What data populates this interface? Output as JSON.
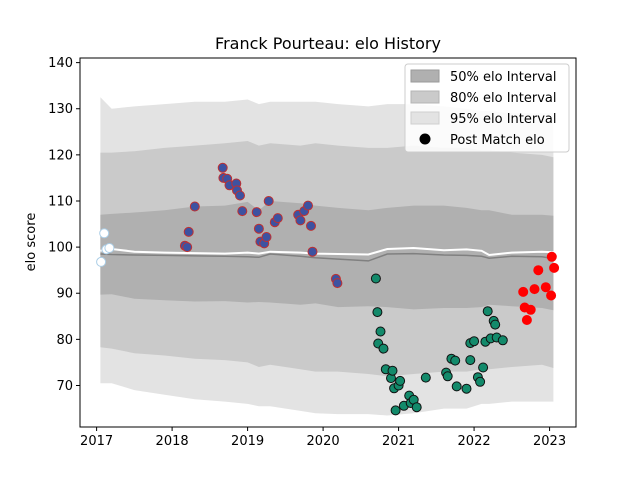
{
  "chart_data": {
    "type": "scatter",
    "title": "Franck Pourteau: elo History",
    "xlabel": "",
    "ylabel": "elo score",
    "xlim": [
      2016.78,
      2023.35
    ],
    "ylim": [
      61,
      141
    ],
    "x_ticks": [
      2017,
      2018,
      2019,
      2020,
      2021,
      2022,
      2023
    ],
    "y_ticks": [
      70,
      80,
      90,
      100,
      110,
      120,
      130,
      140
    ],
    "grid": false,
    "legend_position": "top-right",
    "legend": [
      {
        "label": "50% elo Interval",
        "kind": "band",
        "color": "#b0b0b0"
      },
      {
        "label": "80% elo Interval",
        "kind": "band",
        "color": "#cacaca"
      },
      {
        "label": "95% elo Interval",
        "kind": "band",
        "color": "#e3e3e3"
      },
      {
        "label": "Post Match elo",
        "kind": "marker",
        "color": "#000000"
      }
    ],
    "bands": {
      "x": [
        2017.05,
        2017.2,
        2017.5,
        2017.9,
        2018.3,
        2018.7,
        2019.0,
        2019.15,
        2019.3,
        2019.7,
        2019.9,
        2020.2,
        2020.6,
        2020.85,
        2021.2,
        2021.6,
        2021.9,
        2022.1,
        2022.2,
        2022.5,
        2022.9,
        2023.05
      ],
      "center": [
        98.5,
        98.4,
        98.3,
        98.2,
        98.1,
        98.0,
        97.9,
        97.8,
        98.5,
        98.0,
        97.7,
        97.4,
        97.0,
        98.5,
        98.6,
        98.3,
        98.2,
        98.0,
        97.6,
        98.0,
        97.9,
        97.5
      ],
      "p50": [
        [
          89.7,
          107.0
        ],
        [
          89.8,
          107.2
        ],
        [
          88.8,
          107.5
        ],
        [
          88.5,
          108.0
        ],
        [
          88.2,
          108.8
        ],
        [
          88.3,
          109.0
        ],
        [
          88.0,
          109.8
        ],
        [
          88.1,
          108.0
        ],
        [
          88.0,
          110.0
        ],
        [
          87.5,
          109.5
        ],
        [
          87.8,
          109.0
        ],
        [
          87.0,
          108.5
        ],
        [
          87.2,
          108.0
        ],
        [
          87.0,
          108.5
        ],
        [
          86.5,
          109.0
        ],
        [
          86.8,
          109.0
        ],
        [
          86.8,
          108.5
        ],
        [
          87.0,
          108.0
        ],
        [
          87.5,
          108.0
        ],
        [
          87.2,
          107.0
        ],
        [
          86.8,
          107.0
        ],
        [
          86.3,
          106.8
        ]
      ],
      "p80": [
        [
          78.3,
          120.5
        ],
        [
          78.0,
          120.5
        ],
        [
          77.0,
          120.8
        ],
        [
          76.5,
          121.5
        ],
        [
          75.8,
          122.0
        ],
        [
          75.5,
          122.5
        ],
        [
          75.0,
          123.0
        ],
        [
          74.0,
          122.0
        ],
        [
          74.5,
          122.5
        ],
        [
          73.5,
          122.0
        ],
        [
          73.0,
          122.5
        ],
        [
          73.0,
          122.0
        ],
        [
          72.5,
          121.5
        ],
        [
          72.0,
          121.5
        ],
        [
          72.5,
          122.0
        ],
        [
          73.0,
          121.5
        ],
        [
          73.0,
          121.5
        ],
        [
          73.5,
          121.0
        ],
        [
          73.5,
          121.0
        ],
        [
          74.0,
          120.5
        ],
        [
          74.5,
          120.0
        ],
        [
          73.8,
          119.5
        ]
      ],
      "p95": [
        [
          70.5,
          132.5
        ],
        [
          70.5,
          130.0
        ],
        [
          69.0,
          130.5
        ],
        [
          68.0,
          131.0
        ],
        [
          67.0,
          131.5
        ],
        [
          66.5,
          131.5
        ],
        [
          66.0,
          132.0
        ],
        [
          65.5,
          131.0
        ],
        [
          65.5,
          131.5
        ],
        [
          64.5,
          131.5
        ],
        [
          64.0,
          131.5
        ],
        [
          63.8,
          131.0
        ],
        [
          63.8,
          130.5
        ],
        [
          63.5,
          131.0
        ],
        [
          64.0,
          131.0
        ],
        [
          65.0,
          130.5
        ],
        [
          65.0,
          130.0
        ],
        [
          66.0,
          129.5
        ],
        [
          66.0,
          129.5
        ],
        [
          66.5,
          129.0
        ],
        [
          66.5,
          129.0
        ],
        [
          66.5,
          129.0
        ]
      ],
      "mean_line": [
        99.2,
        99.6,
        99.0,
        98.8,
        98.7,
        98.6,
        98.8,
        98.6,
        99.0,
        98.8,
        98.6,
        98.5,
        98.4,
        99.6,
        99.8,
        99.3,
        99.5,
        99.2,
        98.3,
        98.8,
        99.0,
        98.9
      ]
    },
    "series": [
      {
        "color": "#ffffff",
        "edge": "#aacde6",
        "points": [
          [
            2017.06,
            96.8
          ],
          [
            2017.1,
            103.0
          ],
          [
            2017.13,
            99.5
          ],
          [
            2017.17,
            99.8
          ]
        ]
      },
      {
        "color": "#3d52a1",
        "edge": "#c03030",
        "points": [
          [
            2018.17,
            100.3
          ],
          [
            2018.2,
            100.0
          ],
          [
            2018.22,
            103.3
          ],
          [
            2018.3,
            108.8
          ],
          [
            2018.67,
            117.2
          ],
          [
            2018.68,
            115.0
          ],
          [
            2018.73,
            114.8
          ],
          [
            2018.76,
            113.4
          ],
          [
            2018.85,
            113.8
          ],
          [
            2018.86,
            112.3
          ],
          [
            2018.9,
            111.2
          ],
          [
            2018.93,
            107.8
          ],
          [
            2019.12,
            107.6
          ],
          [
            2019.15,
            104.0
          ],
          [
            2019.17,
            101.2
          ],
          [
            2019.22,
            100.8
          ],
          [
            2019.25,
            102.2
          ],
          [
            2019.28,
            110.0
          ],
          [
            2019.36,
            105.4
          ],
          [
            2019.4,
            106.3
          ],
          [
            2019.67,
            107.0
          ],
          [
            2019.7,
            105.8
          ],
          [
            2019.75,
            107.8
          ],
          [
            2019.8,
            109.0
          ],
          [
            2019.84,
            104.6
          ],
          [
            2019.86,
            99.0
          ],
          [
            2020.17,
            93.1
          ],
          [
            2020.19,
            92.2
          ]
        ]
      },
      {
        "color": "#138a6b",
        "edge": "#111111",
        "points": [
          [
            2020.7,
            93.2
          ],
          [
            2020.72,
            85.9
          ],
          [
            2020.73,
            79.1
          ],
          [
            2020.76,
            81.7
          ],
          [
            2020.8,
            78.0
          ],
          [
            2020.83,
            73.5
          ],
          [
            2020.9,
            71.6
          ],
          [
            2020.92,
            73.2
          ],
          [
            2020.94,
            69.4
          ],
          [
            2020.96,
            64.6
          ],
          [
            2021.0,
            70.0
          ],
          [
            2021.02,
            71.0
          ],
          [
            2021.07,
            65.6
          ],
          [
            2021.14,
            67.8
          ],
          [
            2021.16,
            66.2
          ],
          [
            2021.2,
            66.9
          ],
          [
            2021.24,
            65.3
          ],
          [
            2021.36,
            71.7
          ],
          [
            2021.63,
            72.8
          ],
          [
            2021.65,
            72.0
          ],
          [
            2021.7,
            75.8
          ],
          [
            2021.75,
            75.4
          ],
          [
            2021.77,
            69.8
          ],
          [
            2021.9,
            69.3
          ],
          [
            2021.95,
            79.2
          ],
          [
            2021.95,
            75.5
          ],
          [
            2022.0,
            79.6
          ],
          [
            2022.05,
            71.8
          ],
          [
            2022.08,
            70.8
          ],
          [
            2022.12,
            73.9
          ],
          [
            2022.15,
            79.5
          ],
          [
            2022.18,
            86.1
          ],
          [
            2022.22,
            80.2
          ],
          [
            2022.26,
            84.0
          ],
          [
            2022.28,
            83.2
          ],
          [
            2022.3,
            80.4
          ],
          [
            2022.38,
            79.8
          ]
        ]
      },
      {
        "color": "#ff0000",
        "edge": "#ff0000",
        "points": [
          [
            2022.65,
            90.3
          ],
          [
            2022.67,
            86.9
          ],
          [
            2022.7,
            84.2
          ],
          [
            2022.75,
            86.4
          ],
          [
            2022.8,
            90.9
          ],
          [
            2022.85,
            95.0
          ],
          [
            2022.95,
            91.3
          ],
          [
            2023.02,
            89.5
          ],
          [
            2023.03,
            97.9
          ],
          [
            2023.06,
            95.5
          ]
        ]
      }
    ]
  }
}
